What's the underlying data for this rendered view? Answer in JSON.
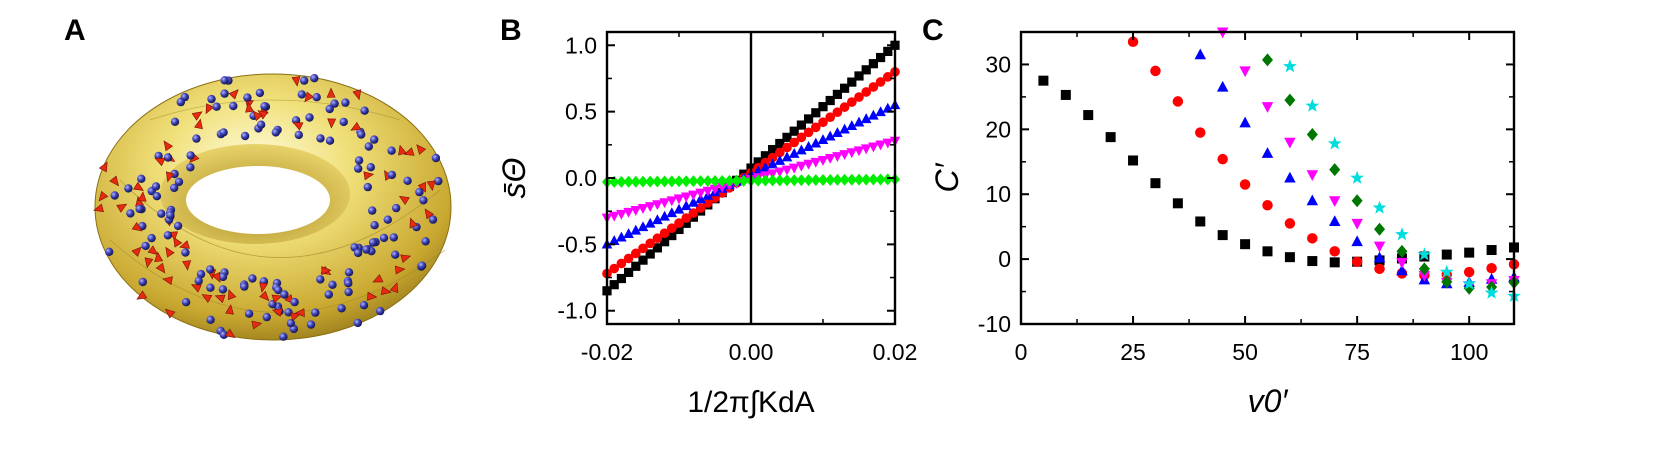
{
  "panels": {
    "a_label": "A",
    "b_label": "B",
    "c_label": "C"
  },
  "chart_data": [
    {
      "type": "scatter",
      "panel": "B",
      "xlabel": "1/2π∫KdA",
      "ylabel": "s̄Θ",
      "xlim": [
        -0.02,
        0.02
      ],
      "ylim": [
        -1.1,
        1.1
      ],
      "xticks": [
        "-0.02",
        "0.00",
        "0.02"
      ],
      "yticks": [
        "-1.0",
        "-0.5",
        "0.0",
        "0.5",
        "1.0"
      ],
      "grid": false,
      "series": [
        {
          "marker": "square",
          "color": "#000000",
          "x0": -0.02,
          "y0": -0.85,
          "x1": 0.02,
          "y1": 1.0
        },
        {
          "marker": "circle",
          "color": "#ff0000",
          "x0": -0.02,
          "y0": -0.72,
          "x1": 0.02,
          "y1": 0.8
        },
        {
          "marker": "triangle-up",
          "color": "#0000ff",
          "x0": -0.02,
          "y0": -0.5,
          "x1": 0.02,
          "y1": 0.55
        },
        {
          "marker": "triangle-down",
          "color": "#ff00ff",
          "x0": -0.02,
          "y0": -0.3,
          "x1": 0.02,
          "y1": 0.28
        },
        {
          "marker": "diamond",
          "color": "#00ee00",
          "x0": -0.02,
          "y0": -0.03,
          "x1": 0.02,
          "y1": -0.01
        }
      ]
    },
    {
      "type": "scatter",
      "panel": "C",
      "xlabel": "v0′",
      "ylabel": "C′",
      "xlim": [
        0,
        110
      ],
      "ylim": [
        -10,
        35
      ],
      "xticks": [
        "0",
        "25",
        "50",
        "75",
        "100"
      ],
      "yticks": [
        "-10",
        "0",
        "10",
        "20",
        "30"
      ],
      "grid": false,
      "series": [
        {
          "marker": "square",
          "color": "#000000",
          "points": [
            [
              5,
              27.5
            ],
            [
              10,
              25.3
            ],
            [
              15,
              22.2
            ],
            [
              20,
              18.8
            ],
            [
              25,
              15.2
            ],
            [
              30,
              11.7
            ],
            [
              35,
              8.6
            ],
            [
              40,
              5.8
            ],
            [
              45,
              3.7
            ],
            [
              50,
              2.3
            ],
            [
              55,
              1.2
            ],
            [
              60,
              0.3
            ],
            [
              65,
              -0.3
            ],
            [
              70,
              -0.5
            ],
            [
              75,
              -0.4
            ],
            [
              80,
              -0.2
            ],
            [
              85,
              0.1
            ],
            [
              90,
              0.4
            ],
            [
              95,
              0.7
            ],
            [
              100,
              1.0
            ],
            [
              105,
              1.4
            ],
            [
              110,
              1.8
            ]
          ]
        },
        {
          "marker": "circle",
          "color": "#ff0000",
          "points": [
            [
              25,
              33.5
            ],
            [
              30,
              29
            ],
            [
              35,
              24.3
            ],
            [
              40,
              19.5
            ],
            [
              45,
              15.4
            ],
            [
              50,
              11.5
            ],
            [
              55,
              8.3
            ],
            [
              60,
              5.5
            ],
            [
              65,
              3.2
            ],
            [
              70,
              1.2
            ],
            [
              75,
              -0.4
            ],
            [
              80,
              -1.5
            ],
            [
              85,
              -2.2
            ],
            [
              90,
              -2.5
            ],
            [
              95,
              -2.4
            ],
            [
              100,
              -2.0
            ],
            [
              105,
              -1.4
            ],
            [
              110,
              -0.8
            ]
          ]
        },
        {
          "marker": "triangle-up",
          "color": "#0000ff",
          "points": [
            [
              40,
              31.5
            ],
            [
              45,
              26.5
            ],
            [
              50,
              21
            ],
            [
              55,
              16.3
            ],
            [
              60,
              12.5
            ],
            [
              65,
              9
            ],
            [
              70,
              5.8
            ],
            [
              75,
              2.7
            ],
            [
              80,
              0.2
            ],
            [
              85,
              -1.8
            ],
            [
              90,
              -3.2
            ],
            [
              95,
              -3.8
            ],
            [
              100,
              -3.6
            ],
            [
              105,
              -3.1
            ],
            [
              110,
              -2.8
            ]
          ]
        },
        {
          "marker": "triangle-down",
          "color": "#ff00ff",
          "points": [
            [
              45,
              35
            ],
            [
              50,
              29
            ],
            [
              55,
              23.5
            ],
            [
              60,
              18
            ],
            [
              65,
              13
            ],
            [
              70,
              9
            ],
            [
              75,
              5.5
            ],
            [
              80,
              2
            ],
            [
              85,
              -0.5
            ],
            [
              90,
              -2.5
            ],
            [
              95,
              -3.6
            ],
            [
              100,
              -4.1
            ],
            [
              105,
              -3.8
            ],
            [
              110,
              -3.3
            ]
          ]
        },
        {
          "marker": "diamond",
          "color": "#007700",
          "points": [
            [
              55,
              30.7
            ],
            [
              60,
              24.5
            ],
            [
              65,
              19.2
            ],
            [
              70,
              13.8
            ],
            [
              75,
              9
            ],
            [
              80,
              4.6
            ],
            [
              85,
              1.2
            ],
            [
              90,
              -1.5
            ],
            [
              95,
              -3.5
            ],
            [
              100,
              -4.5
            ],
            [
              105,
              -4.3
            ],
            [
              110,
              -3.6
            ]
          ]
        },
        {
          "marker": "star",
          "color": "#00dddd",
          "points": [
            [
              60,
              29.7
            ],
            [
              65,
              23.6
            ],
            [
              70,
              17.8
            ],
            [
              75,
              12.5
            ],
            [
              80,
              7.9
            ],
            [
              85,
              3.8
            ],
            [
              90,
              0.7
            ],
            [
              95,
              -2
            ],
            [
              100,
              -3.8
            ],
            [
              105,
              -5.2
            ],
            [
              110,
              -5.7
            ]
          ]
        }
      ]
    }
  ]
}
